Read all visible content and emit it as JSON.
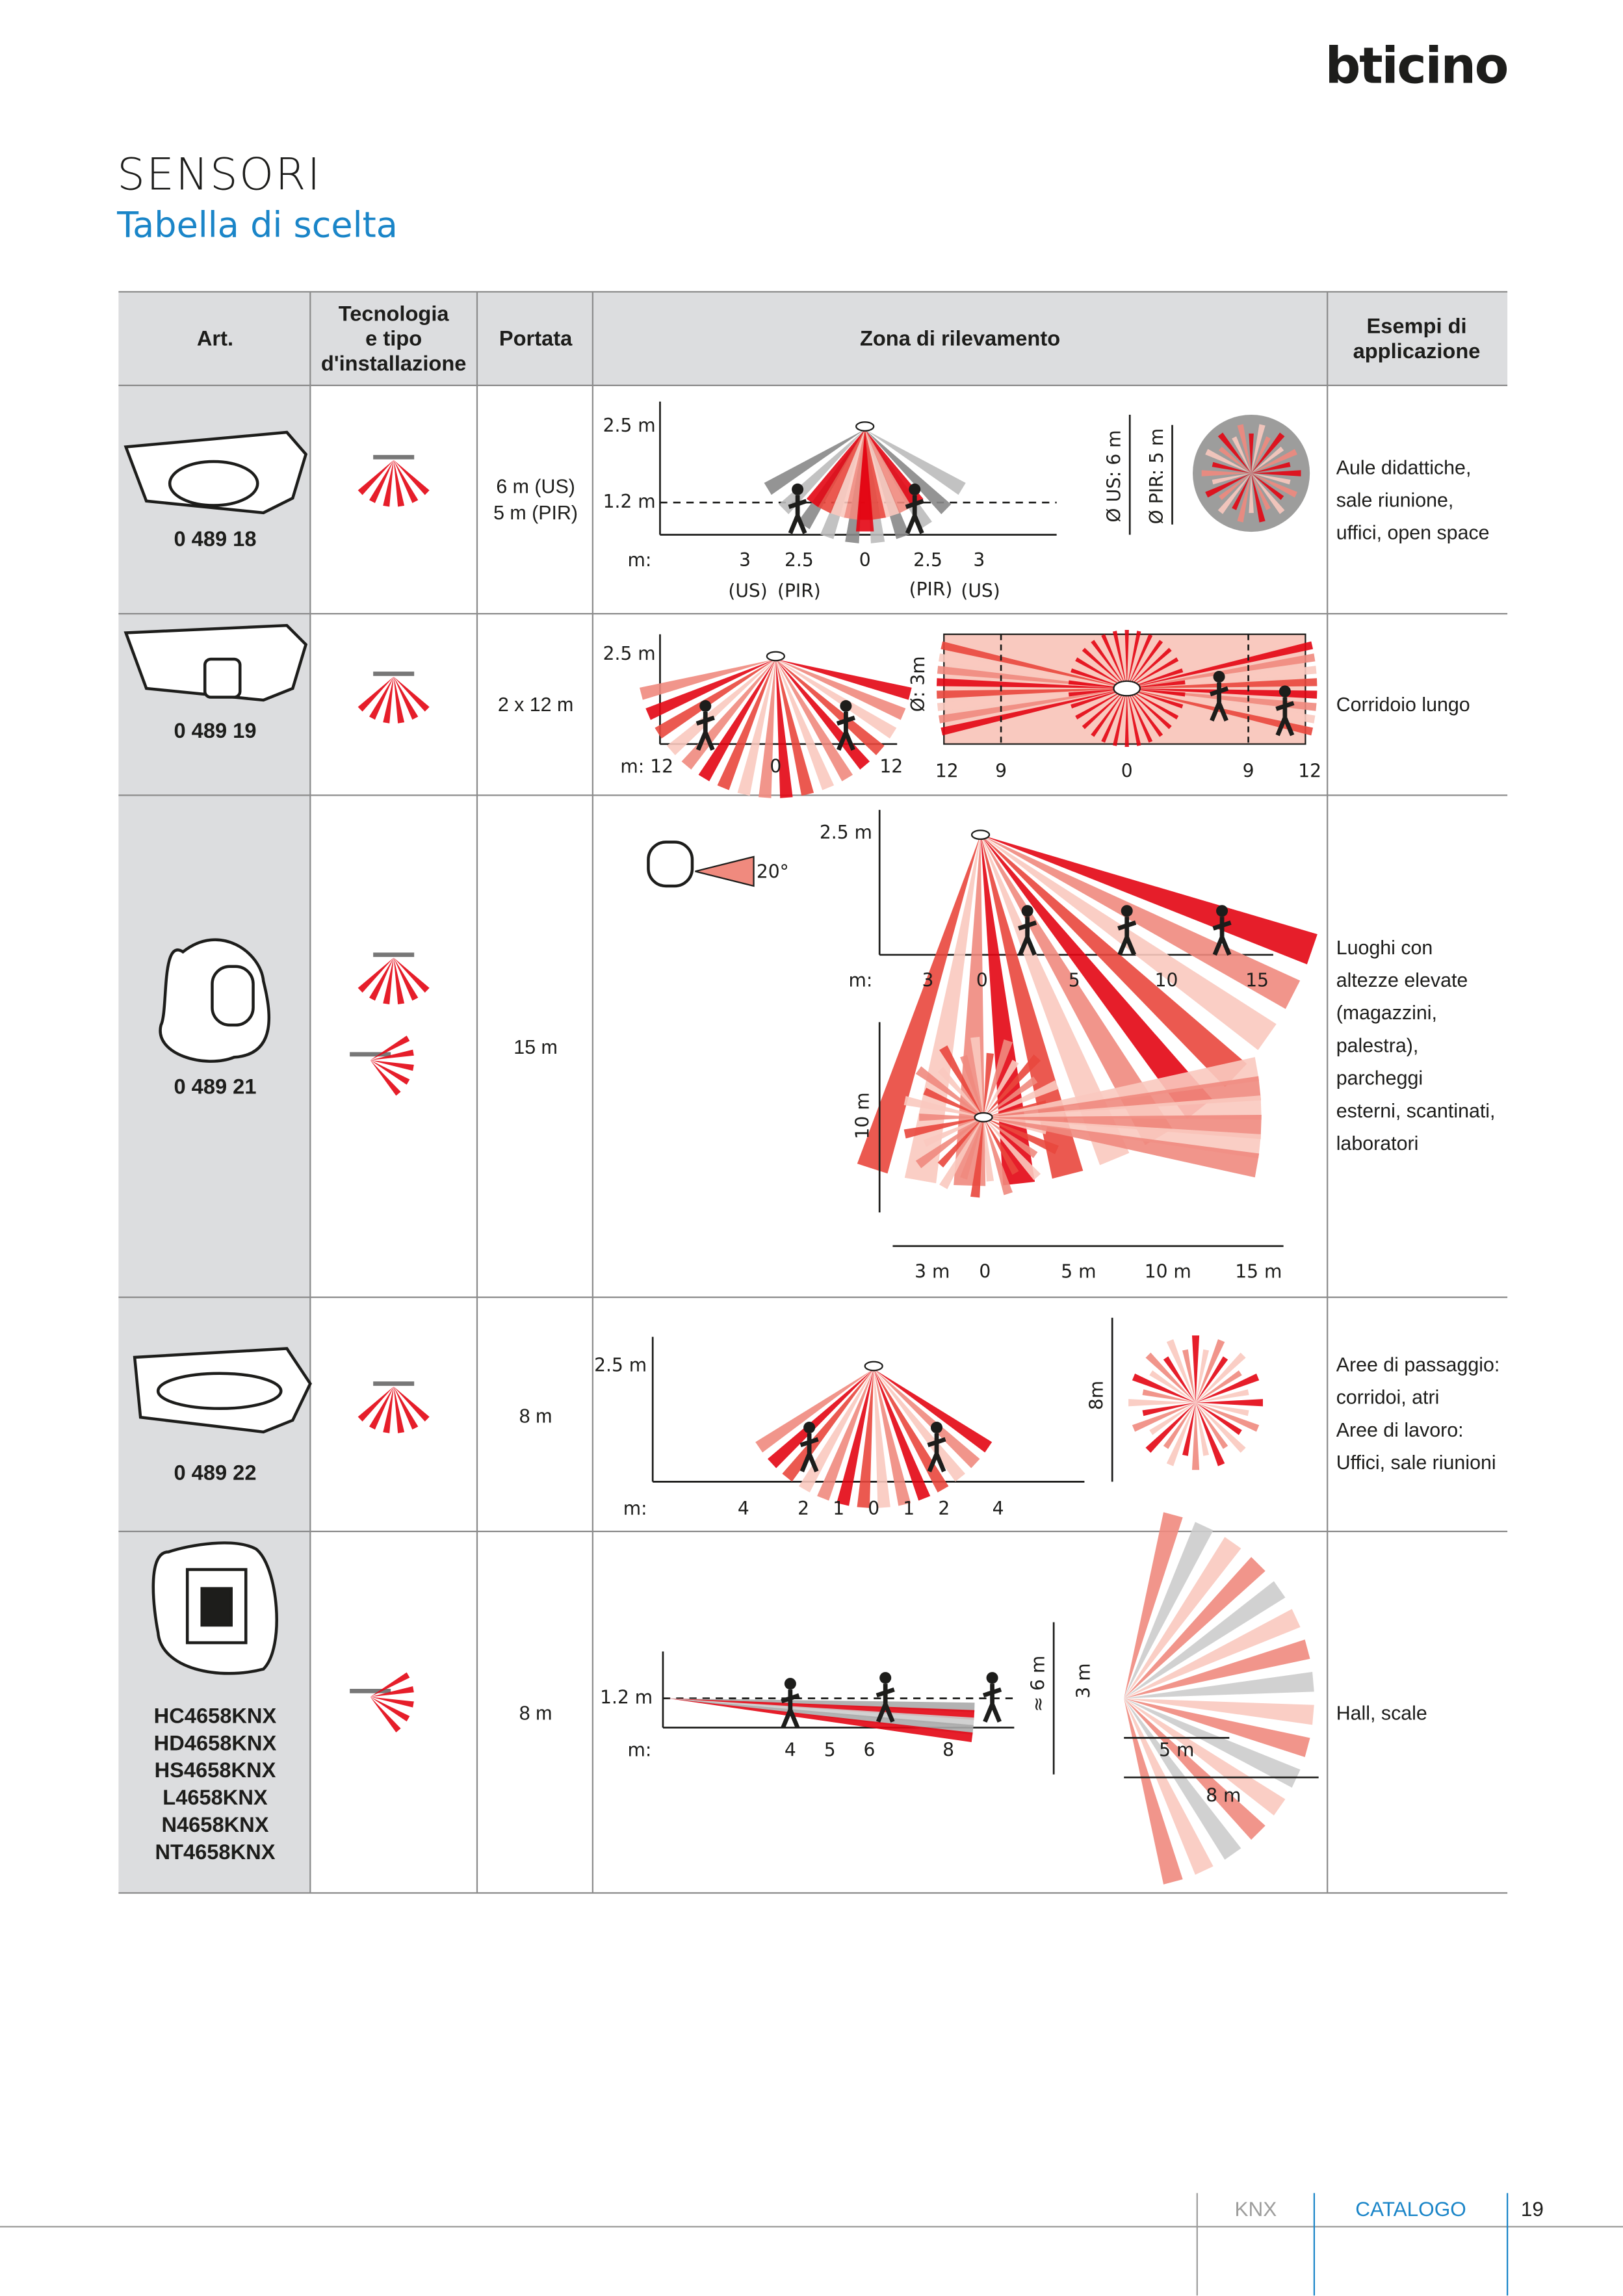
{
  "header": {
    "brand": "bticino",
    "title": "SENSORI",
    "subtitle": "Tabella di scelta"
  },
  "table": {
    "columns": [
      [
        "Art."
      ],
      [
        "Tecnologia",
        "e tipo",
        "d'installazione"
      ],
      [
        "Portata"
      ],
      [
        "Zona di rilevamento"
      ],
      [
        "Esempi di",
        "applicazione"
      ]
    ],
    "rows": [
      {
        "art": [
          "0 489 18"
        ],
        "portata": [
          "6 m (US)",
          "5 m (PIR)"
        ],
        "applicazione": [
          "Aule didattiche,",
          "sale riunione,",
          "uffici, open space"
        ],
        "zona": [
          "2.5 m",
          "1.2 m",
          "m:",
          "3",
          "2.5",
          "0",
          "2.5",
          "3",
          "(US)",
          "(PIR)",
          "(PIR)",
          "(US)",
          "Ø US: 6 m",
          "Ø PIR: 5 m"
        ]
      },
      {
        "art": [
          "0 489 19"
        ],
        "portata": [
          "2 x 12 m"
        ],
        "applicazione": [
          "Corridoio lungo"
        ],
        "zona": [
          "2.5 m",
          "m: 12",
          "0",
          "12",
          "Ø: 3m",
          "12",
          "9",
          "0",
          "9",
          "12"
        ]
      },
      {
        "art": [
          "0 489 21"
        ],
        "portata": [
          "15 m"
        ],
        "applicazione": [
          "Luoghi con",
          "altezze elevate",
          "(magazzini,",
          "palestra),",
          "parcheggi",
          "esterni, scantinati,",
          "laboratori"
        ],
        "zona": [
          "20°",
          "2.5 m",
          "m:",
          "3",
          "0",
          "5",
          "10",
          "15",
          "10 m",
          "3 m",
          "0",
          "5 m",
          "10 m",
          "15 m"
        ]
      },
      {
        "art": [
          "0 489 22"
        ],
        "portata": [
          "8 m"
        ],
        "applicazione": [
          "Aree di passaggio:",
          "corridoi, atri",
          "Aree di lavoro:",
          "Uffici, sale riunioni"
        ],
        "zona": [
          "2.5 m",
          "8m",
          "m:",
          "4",
          "2",
          "1",
          "0",
          "1",
          "2",
          "4"
        ]
      },
      {
        "art": [
          "HC4658KNX",
          "HD4658KNX",
          "HS4658KNX",
          "L4658KNX",
          "N4658KNX",
          "NT4658KNX"
        ],
        "portata": [
          "8 m"
        ],
        "applicazione": [
          "Hall, scale"
        ],
        "zona": [
          "1.2 m",
          "m:",
          "4",
          "5",
          "6",
          "8",
          "≈ 6 m",
          "3 m",
          "5 m",
          "8 m"
        ]
      }
    ]
  },
  "footer": {
    "section": "KNX",
    "catalog": "CATALOGO",
    "page": "19"
  }
}
